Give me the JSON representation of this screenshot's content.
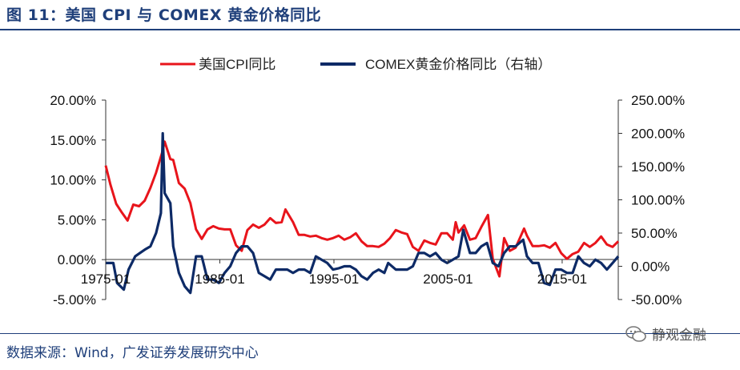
{
  "header": {
    "title": "图 11：美国 CPI 与 COMEX 黄金价格同比"
  },
  "footer": {
    "source": "数据来源：Wind，广发证券发展研究中心",
    "watermark": "静观金融"
  },
  "colors": {
    "cpi": "#e8141b",
    "gold": "#0d2a66",
    "brand": "#1f3f7a"
  },
  "chart_data": {
    "type": "line",
    "legend_placement": "top",
    "grid": false,
    "x_ticks": [
      "1975-01",
      "1985-01",
      "1995-01",
      "2005-01",
      "2015-01"
    ],
    "x_range": [
      "1975-01",
      "2019-12"
    ],
    "y_left": {
      "ylim": [
        -5,
        20
      ],
      "ticks": [
        "-5.00%",
        "0.00%",
        "5.00%",
        "10.00%",
        "15.00%",
        "20.00%"
      ]
    },
    "y_right": {
      "ylim": [
        -50,
        250
      ],
      "ticks": [
        "-50.00%",
        "0.00%",
        "50.00%",
        "100.00%",
        "150.00%",
        "200.00%",
        "250.00%"
      ]
    },
    "series": [
      {
        "name": "美国CPI同比",
        "axis": "left",
        "color": "#e8141b",
        "points": [
          [
            "1975-01",
            11.8
          ],
          [
            "1975-06",
            9.4
          ],
          [
            "1975-12",
            7.0
          ],
          [
            "1976-06",
            5.9
          ],
          [
            "1976-12",
            4.9
          ],
          [
            "1977-06",
            6.9
          ],
          [
            "1977-12",
            6.7
          ],
          [
            "1978-06",
            7.4
          ],
          [
            "1978-12",
            9.0
          ],
          [
            "1979-06",
            10.9
          ],
          [
            "1979-12",
            13.3
          ],
          [
            "1980-03",
            14.8
          ],
          [
            "1980-09",
            12.6
          ],
          [
            "1980-12",
            12.5
          ],
          [
            "1981-06",
            9.6
          ],
          [
            "1981-12",
            8.9
          ],
          [
            "1982-06",
            7.1
          ],
          [
            "1982-12",
            3.8
          ],
          [
            "1983-06",
            2.6
          ],
          [
            "1983-12",
            3.8
          ],
          [
            "1984-06",
            4.2
          ],
          [
            "1984-12",
            3.9
          ],
          [
            "1985-06",
            3.8
          ],
          [
            "1985-12",
            3.8
          ],
          [
            "1986-06",
            1.8
          ],
          [
            "1986-12",
            1.1
          ],
          [
            "1987-06",
            3.7
          ],
          [
            "1987-12",
            4.4
          ],
          [
            "1988-06",
            4.0
          ],
          [
            "1988-12",
            4.4
          ],
          [
            "1989-06",
            5.2
          ],
          [
            "1989-12",
            4.6
          ],
          [
            "1990-06",
            4.7
          ],
          [
            "1990-10",
            6.3
          ],
          [
            "1991-06",
            4.7
          ],
          [
            "1991-12",
            3.1
          ],
          [
            "1992-06",
            3.1
          ],
          [
            "1992-12",
            2.9
          ],
          [
            "1993-06",
            3.0
          ],
          [
            "1993-12",
            2.7
          ],
          [
            "1994-06",
            2.5
          ],
          [
            "1994-12",
            2.7
          ],
          [
            "1995-06",
            3.0
          ],
          [
            "1995-12",
            2.5
          ],
          [
            "1996-06",
            2.8
          ],
          [
            "1996-12",
            3.3
          ],
          [
            "1997-06",
            2.3
          ],
          [
            "1997-12",
            1.7
          ],
          [
            "1998-06",
            1.7
          ],
          [
            "1998-12",
            1.6
          ],
          [
            "1999-06",
            2.0
          ],
          [
            "1999-12",
            2.7
          ],
          [
            "2000-06",
            3.7
          ],
          [
            "2000-12",
            3.4
          ],
          [
            "2001-06",
            3.2
          ],
          [
            "2001-12",
            1.6
          ],
          [
            "2002-06",
            1.1
          ],
          [
            "2002-12",
            2.4
          ],
          [
            "2003-06",
            2.1
          ],
          [
            "2003-12",
            1.9
          ],
          [
            "2004-06",
            3.3
          ],
          [
            "2004-12",
            3.3
          ],
          [
            "2005-06",
            2.5
          ],
          [
            "2005-09",
            4.7
          ],
          [
            "2005-12",
            3.4
          ],
          [
            "2006-06",
            4.3
          ],
          [
            "2006-12",
            2.5
          ],
          [
            "2007-06",
            2.7
          ],
          [
            "2007-12",
            4.1
          ],
          [
            "2008-07",
            5.6
          ],
          [
            "2008-12",
            0.1
          ],
          [
            "2009-07",
            -2.1
          ],
          [
            "2009-12",
            2.7
          ],
          [
            "2010-06",
            1.1
          ],
          [
            "2010-12",
            1.5
          ],
          [
            "2011-09",
            3.9
          ],
          [
            "2011-12",
            3.0
          ],
          [
            "2012-06",
            1.7
          ],
          [
            "2012-12",
            1.7
          ],
          [
            "2013-06",
            1.8
          ],
          [
            "2013-12",
            1.5
          ],
          [
            "2014-06",
            2.1
          ],
          [
            "2014-12",
            0.8
          ],
          [
            "2015-06",
            0.1
          ],
          [
            "2015-12",
            0.7
          ],
          [
            "2016-06",
            1.0
          ],
          [
            "2016-12",
            2.1
          ],
          [
            "2017-06",
            1.6
          ],
          [
            "2017-12",
            2.1
          ],
          [
            "2018-06",
            2.9
          ],
          [
            "2018-12",
            1.9
          ],
          [
            "2019-06",
            1.6
          ],
          [
            "2019-12",
            2.3
          ]
        ]
      },
      {
        "name": "COMEX黄金价格同比（右轴）",
        "axis": "right",
        "color": "#0d2a66",
        "points": [
          [
            "1975-01",
            5
          ],
          [
            "1975-09",
            5
          ],
          [
            "1976-01",
            -25
          ],
          [
            "1976-08",
            -35
          ],
          [
            "1977-01",
            -5
          ],
          [
            "1977-08",
            15
          ],
          [
            "1978-01",
            20
          ],
          [
            "1978-06",
            25
          ],
          [
            "1978-12",
            30
          ],
          [
            "1979-06",
            50
          ],
          [
            "1979-11",
            80
          ],
          [
            "1980-01",
            200
          ],
          [
            "1980-03",
            110
          ],
          [
            "1980-09",
            95
          ],
          [
            "1980-12",
            30
          ],
          [
            "1981-06",
            -10
          ],
          [
            "1981-12",
            -30
          ],
          [
            "1982-06",
            -40
          ],
          [
            "1982-12",
            15
          ],
          [
            "1983-06",
            15
          ],
          [
            "1983-12",
            -20
          ],
          [
            "1984-06",
            -20
          ],
          [
            "1984-12",
            -25
          ],
          [
            "1985-06",
            -10
          ],
          [
            "1985-12",
            0
          ],
          [
            "1986-06",
            20
          ],
          [
            "1986-12",
            30
          ],
          [
            "1987-06",
            30
          ],
          [
            "1987-12",
            20
          ],
          [
            "1988-06",
            -10
          ],
          [
            "1988-12",
            -15
          ],
          [
            "1989-06",
            -20
          ],
          [
            "1989-12",
            -5
          ],
          [
            "1990-06",
            -5
          ],
          [
            "1990-12",
            -5
          ],
          [
            "1991-06",
            -10
          ],
          [
            "1991-12",
            -5
          ],
          [
            "1992-06",
            -5
          ],
          [
            "1992-12",
            -10
          ],
          [
            "1993-06",
            15
          ],
          [
            "1993-12",
            10
          ],
          [
            "1994-06",
            5
          ],
          [
            "1994-12",
            -5
          ],
          [
            "1995-06",
            -3
          ],
          [
            "1995-12",
            0
          ],
          [
            "1996-06",
            0
          ],
          [
            "1996-12",
            -5
          ],
          [
            "1997-06",
            -15
          ],
          [
            "1997-12",
            -20
          ],
          [
            "1998-06",
            -10
          ],
          [
            "1998-12",
            -5
          ],
          [
            "1999-06",
            -10
          ],
          [
            "1999-10",
            5
          ],
          [
            "2000-06",
            -5
          ],
          [
            "2000-12",
            -5
          ],
          [
            "2001-06",
            -5
          ],
          [
            "2001-12",
            0
          ],
          [
            "2002-06",
            20
          ],
          [
            "2002-12",
            20
          ],
          [
            "2003-06",
            15
          ],
          [
            "2003-12",
            20
          ],
          [
            "2004-06",
            10
          ],
          [
            "2004-12",
            5
          ],
          [
            "2005-06",
            10
          ],
          [
            "2005-12",
            15
          ],
          [
            "2006-05",
            55
          ],
          [
            "2006-12",
            20
          ],
          [
            "2007-06",
            20
          ],
          [
            "2007-12",
            30
          ],
          [
            "2008-06",
            35
          ],
          [
            "2008-12",
            5
          ],
          [
            "2009-06",
            0
          ],
          [
            "2009-12",
            20
          ],
          [
            "2010-06",
            30
          ],
          [
            "2010-12",
            30
          ],
          [
            "2011-08",
            40
          ],
          [
            "2011-12",
            15
          ],
          [
            "2012-06",
            5
          ],
          [
            "2012-12",
            5
          ],
          [
            "2013-06",
            -25
          ],
          [
            "2013-12",
            -28
          ],
          [
            "2014-06",
            -5
          ],
          [
            "2014-12",
            -5
          ],
          [
            "2015-06",
            -10
          ],
          [
            "2015-12",
            -10
          ],
          [
            "2016-06",
            15
          ],
          [
            "2016-12",
            5
          ],
          [
            "2017-06",
            0
          ],
          [
            "2017-12",
            10
          ],
          [
            "2018-06",
            5
          ],
          [
            "2018-12",
            -5
          ],
          [
            "2019-06",
            5
          ],
          [
            "2019-12",
            15
          ]
        ]
      }
    ]
  }
}
